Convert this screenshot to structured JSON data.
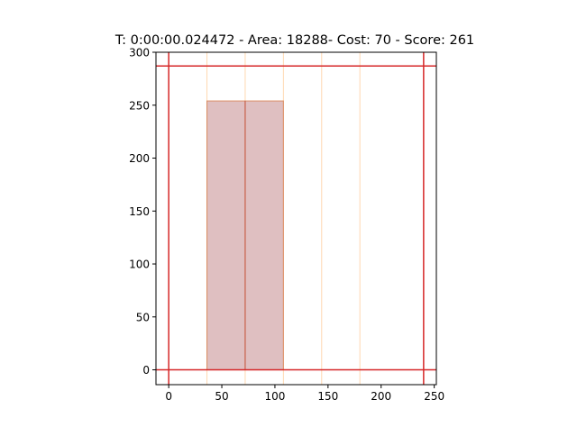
{
  "chart_data": {
    "type": "bar",
    "title": "T: 0:00:00.024472 - Area: 18288- Cost: 70 - Score: 261",
    "xlabel": "",
    "ylabel": "",
    "xlim": [
      -12,
      252
    ],
    "ylim": [
      -14,
      300
    ],
    "xticks": [
      0,
      50,
      100,
      150,
      200,
      250
    ],
    "yticks": [
      0,
      50,
      100,
      150,
      200,
      250,
      300
    ],
    "grid": false,
    "rects": [
      {
        "x": 36,
        "y": 0,
        "width": 36,
        "height": 254
      },
      {
        "x": 72,
        "y": 0,
        "width": 36,
        "height": 254
      }
    ],
    "vertical_guides": [
      36,
      72,
      108,
      144,
      180
    ],
    "boundary_vlines": [
      0,
      240
    ],
    "boundary_hlines": [
      0,
      287
    ],
    "colors": {
      "boundary": "#d62728",
      "rect_fill": "#bf7f84",
      "rect_edge": "#d8865a",
      "rect_divider": "#c86452",
      "guide": "#ffb870",
      "axis": "#000000"
    }
  }
}
